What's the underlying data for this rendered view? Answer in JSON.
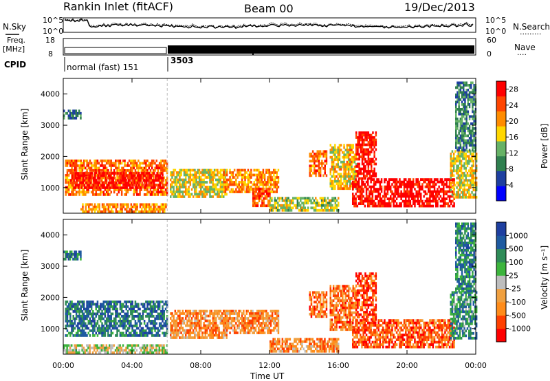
{
  "header": {
    "station": "Rankin Inlet (fitACF)",
    "beam": "Beam 00",
    "date": "19/Dec/2013"
  },
  "strip": {
    "nsky_label": "N.Sky",
    "nsearch_label": "N.Search",
    "nsearch_dots": "·········",
    "noise_ticks_left": [
      "10^5",
      "10^0"
    ],
    "noise_ticks_right": [
      "10^5",
      "10^0"
    ],
    "freq_label": "Freq.",
    "freq_unit": "[MHz]",
    "freq_ticks": [
      "18",
      "8"
    ],
    "nave_label": "Nave",
    "nave_dots": "····",
    "nave_ticks": [
      "60",
      "0"
    ],
    "cpid_label": "CPID",
    "cpid_modes": [
      {
        "start_hour": 0.0,
        "text": "normal (fast) 151"
      },
      {
        "start_hour": 6.1,
        "text": "3503"
      }
    ]
  },
  "colors": {
    "power_scale": [
      "#0000ff",
      "#1e3fa0",
      "#2f7f4f",
      "#66b266",
      "#ffd700",
      "#ff8c00",
      "#ff4500",
      "#ff0000"
    ],
    "velocity_scale": [
      "#ff0000",
      "#ff4000",
      "#ff8c1a",
      "#f0a040",
      "#bdbdbd",
      "#3cb43c",
      "#2e8b57",
      "#1e5aa0",
      "#1e3fa0"
    ]
  },
  "chart_data": [
    {
      "type": "heatmap",
      "title": "",
      "xlabel": "Time UT",
      "ylabel": "Slant Range [km]",
      "x_ticks": [
        "00:00",
        "04:00",
        "08:00",
        "12:00",
        "16:00",
        "20:00",
        "00:00"
      ],
      "xlim_hours": [
        0,
        24
      ],
      "y_ticks": [
        "1000",
        "2000",
        "3000",
        "4000"
      ],
      "ylim_km": [
        180,
        4500
      ],
      "colorbar": {
        "label": "Power [dB]",
        "ticks": [
          "4",
          "8",
          "12",
          "16",
          "20",
          "24",
          "28"
        ],
        "range": [
          0,
          30
        ]
      },
      "regions": [
        {
          "t0": 0.1,
          "t1": 6.0,
          "r0": 800,
          "r1": 1900,
          "level": 0.75
        },
        {
          "t0": 0.4,
          "t1": 5.8,
          "r0": 1000,
          "r1": 1500,
          "level": 0.95
        },
        {
          "t0": 1.0,
          "t1": 6.0,
          "r0": 220,
          "r1": 500,
          "level": 0.7
        },
        {
          "t0": 0.0,
          "t1": 1.0,
          "r0": 3250,
          "r1": 3500,
          "level": 0.3
        },
        {
          "t0": 6.2,
          "t1": 9.5,
          "r0": 700,
          "r1": 1600,
          "level": 0.55
        },
        {
          "t0": 9.3,
          "t1": 12.5,
          "r0": 900,
          "r1": 1600,
          "level": 0.7
        },
        {
          "t0": 11.0,
          "t1": 12.0,
          "r0": 400,
          "r1": 1000,
          "level": 0.8
        },
        {
          "t0": 12.0,
          "t1": 16.0,
          "r0": 300,
          "r1": 700,
          "level": 0.5
        },
        {
          "t0": 14.3,
          "t1": 15.3,
          "r0": 1400,
          "r1": 2200,
          "level": 0.75
        },
        {
          "t0": 15.5,
          "t1": 17.0,
          "r0": 1000,
          "r1": 2400,
          "level": 0.6
        },
        {
          "t0": 16.8,
          "t1": 22.7,
          "r0": 400,
          "r1": 1300,
          "level": 0.97
        },
        {
          "t0": 17.0,
          "t1": 18.2,
          "r0": 1300,
          "r1": 2800,
          "level": 0.95
        },
        {
          "t0": 22.5,
          "t1": 24.0,
          "r0": 700,
          "r1": 2200,
          "level": 0.55
        },
        {
          "t0": 22.8,
          "t1": 24.0,
          "r0": 2200,
          "r1": 4400,
          "level": 0.3
        }
      ]
    },
    {
      "type": "heatmap",
      "title": "",
      "xlabel": "Time UT",
      "ylabel": "Slant Range [km]",
      "x_ticks": [
        "00:00",
        "04:00",
        "08:00",
        "12:00",
        "16:00",
        "20:00",
        "00:00"
      ],
      "xlim_hours": [
        0,
        24
      ],
      "y_ticks": [
        "1000",
        "2000",
        "3000",
        "4000"
      ],
      "ylim_km": [
        180,
        4500
      ],
      "colorbar": {
        "label": "Velocity [m s⁻¹]",
        "ticks": [
          "1000",
          "500",
          "100",
          "25",
          "-25",
          "-100",
          "-500",
          "-1000"
        ],
        "range": [
          -1000,
          1000
        ]
      },
      "regions": [
        {
          "t0": 0.1,
          "t1": 6.0,
          "r0": 800,
          "r1": 1900,
          "level": 0.8
        },
        {
          "t0": 0.0,
          "t1": 6.0,
          "r0": 220,
          "r1": 500,
          "level": 0.5
        },
        {
          "t0": 0.0,
          "t1": 1.0,
          "r0": 3250,
          "r1": 3500,
          "level": 0.8
        },
        {
          "t0": 6.2,
          "t1": 9.5,
          "r0": 700,
          "r1": 1600,
          "level": 0.3
        },
        {
          "t0": 9.3,
          "t1": 12.5,
          "r0": 900,
          "r1": 1600,
          "level": 0.3
        },
        {
          "t0": 12.0,
          "t1": 16.0,
          "r0": 300,
          "r1": 700,
          "level": 0.3
        },
        {
          "t0": 14.3,
          "t1": 15.3,
          "r0": 1400,
          "r1": 2200,
          "level": 0.25
        },
        {
          "t0": 15.5,
          "t1": 17.0,
          "r0": 1000,
          "r1": 2400,
          "level": 0.25
        },
        {
          "t0": 16.8,
          "t1": 22.7,
          "r0": 400,
          "r1": 1300,
          "level": 0.2
        },
        {
          "t0": 17.0,
          "t1": 18.2,
          "r0": 1300,
          "r1": 2800,
          "level": 0.15
        },
        {
          "t0": 22.5,
          "t1": 24.0,
          "r0": 700,
          "r1": 2200,
          "level": 0.7
        },
        {
          "t0": 22.8,
          "t1": 24.0,
          "r0": 2200,
          "r1": 4400,
          "level": 0.75
        }
      ]
    }
  ]
}
